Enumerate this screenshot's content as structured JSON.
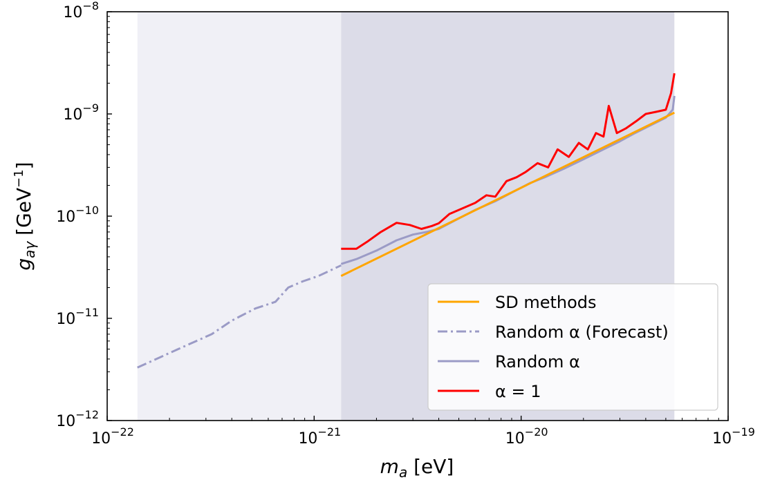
{
  "chart_data": {
    "type": "line",
    "title": "",
    "xlabel": {
      "main": "m",
      "sub": "a",
      "unit": " [eV]"
    },
    "ylabel": {
      "main": "g",
      "sub": "aγ",
      "unit_pre": " [GeV",
      "unit_sup": "−1",
      "unit_post": "]"
    },
    "xscale": "log",
    "yscale": "log",
    "xlim": [
      1e-22,
      1e-19
    ],
    "ylim": [
      1e-12,
      1e-08
    ],
    "xticks": [
      {
        "value": 1e-22,
        "base": "10",
        "exp": "−22"
      },
      {
        "value": 1e-21,
        "base": "10",
        "exp": "−21"
      },
      {
        "value": 1e-20,
        "base": "10",
        "exp": "−20"
      },
      {
        "value": 1e-19,
        "base": "10",
        "exp": "−19"
      }
    ],
    "yticks": [
      {
        "value": 1e-12,
        "base": "10",
        "exp": "−12"
      },
      {
        "value": 1e-11,
        "base": "10",
        "exp": "−11"
      },
      {
        "value": 1e-10,
        "base": "10",
        "exp": "−10"
      },
      {
        "value": 1e-09,
        "base": "10",
        "exp": "−9"
      },
      {
        "value": 1e-08,
        "base": "10",
        "exp": "−8"
      }
    ],
    "grid": false,
    "legend_position": "bottom-right",
    "shaded_regions": [
      {
        "x": [
          1.4e-22,
          1.35e-21
        ],
        "color": "#f0f0f6"
      },
      {
        "x": [
          1.35e-21,
          5.5e-20
        ],
        "color": "#dcdce8"
      }
    ],
    "series": [
      {
        "name": "SD methods",
        "color": "#ffa500",
        "style": "solid",
        "x": [
          1.35e-21,
          5.5e-20
        ],
        "y": [
          2.6e-11,
          1.03e-09
        ]
      },
      {
        "name": "Random α (Forecast)",
        "color": "#9b9bc6",
        "style": "dashdot",
        "x": [
          1.4e-22,
          2.2e-22,
          3.2e-22,
          4e-22,
          5.2e-22,
          6.5e-22,
          7.5e-22,
          8.8e-22,
          1.05e-21,
          1.35e-21
        ],
        "y": [
          3.3e-12,
          5e-12,
          7e-12,
          9.5e-12,
          1.25e-11,
          1.45e-11,
          2e-11,
          2.3e-11,
          2.6e-11,
          3.3e-11
        ]
      },
      {
        "name": "Random α",
        "color": "#9b9bc6",
        "style": "solid",
        "x": [
          1.35e-21,
          1.6e-21,
          2e-21,
          2.5e-21,
          3e-21,
          3.5e-21,
          4e-21,
          5e-21,
          6e-21,
          7.5e-21,
          9e-21,
          1.1e-20,
          1.3e-20,
          1.6e-20,
          2e-20,
          2.5e-20,
          3e-20,
          3.5e-20,
          4.2e-20,
          5e-20,
          5.4e-20,
          5.5e-20
        ],
        "y": [
          3.4e-11,
          3.8e-11,
          4.6e-11,
          5.8e-11,
          6.6e-11,
          7e-11,
          7.5e-11,
          9.5e-11,
          1.15e-10,
          1.4e-10,
          1.7e-10,
          2.1e-10,
          2.4e-10,
          2.9e-10,
          3.6e-10,
          4.5e-10,
          5.4e-10,
          6.4e-10,
          7.7e-10,
          9.2e-10,
          1.1e-09,
          1.5e-09
        ]
      },
      {
        "name": "α = 1",
        "color": "#ff0000",
        "style": "solid",
        "x": [
          1.35e-21,
          1.6e-21,
          1.8e-21,
          2.1e-21,
          2.5e-21,
          2.9e-21,
          3.3e-21,
          3.7e-21,
          4e-21,
          4.5e-21,
          5e-21,
          6e-21,
          6.8e-21,
          7.5e-21,
          8.5e-21,
          9.5e-21,
          1.05e-20,
          1.2e-20,
          1.35e-20,
          1.5e-20,
          1.7e-20,
          1.9e-20,
          2.1e-20,
          2.3e-20,
          2.5e-20,
          2.65e-20,
          2.9e-20,
          3.2e-20,
          3.6e-20,
          4e-20,
          4.5e-20,
          5e-20,
          5.3e-20,
          5.5e-20
        ],
        "y": [
          4.8e-11,
          4.8e-11,
          5.6e-11,
          7e-11,
          8.6e-11,
          8.2e-11,
          7.5e-11,
          8e-11,
          8.5e-11,
          1.05e-10,
          1.15e-10,
          1.35e-10,
          1.6e-10,
          1.55e-10,
          2.2e-10,
          2.4e-10,
          2.7e-10,
          3.3e-10,
          3e-10,
          4.5e-10,
          3.8e-10,
          5.2e-10,
          4.5e-10,
          6.5e-10,
          6e-10,
          1.2e-09,
          6.5e-10,
          7.2e-10,
          8.5e-10,
          1e-09,
          1.05e-09,
          1.1e-09,
          1.6e-09,
          2.5e-09
        ]
      }
    ]
  }
}
